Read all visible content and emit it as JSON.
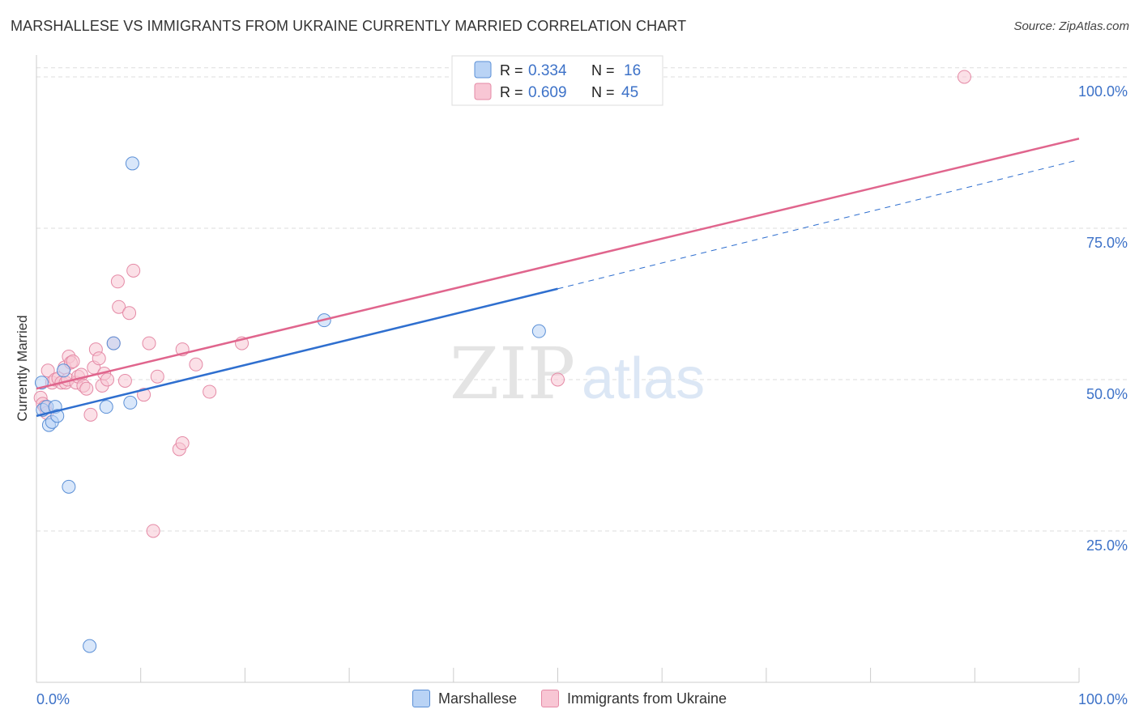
{
  "title": "MARSHALLESE VS IMMIGRANTS FROM UKRAINE CURRENTLY MARRIED CORRELATION CHART",
  "source": "Source: ZipAtlas.com",
  "watermark": {
    "zip": "ZIP",
    "atlas": "atlas"
  },
  "colors": {
    "blue_fill": "#b9d3f5",
    "blue_stroke": "#5a8fd6",
    "blue_line": "#2f6fcf",
    "pink_fill": "#f8c6d4",
    "pink_stroke": "#e58aa6",
    "pink_line": "#e0658d",
    "tick_label": "#3d72c8",
    "grid": "#dddddd"
  },
  "legend": {
    "r_label": "R =",
    "n_label": "N =",
    "series": [
      {
        "r": "0.334",
        "n": "16"
      },
      {
        "r": "0.609",
        "n": "45"
      }
    ]
  },
  "chart_data": {
    "type": "scatter",
    "title": "MARSHALLESE VS IMMIGRANTS FROM UKRAINE CURRENTLY MARRIED CORRELATION CHART",
    "xlabel": "",
    "ylabel": "Currently Married",
    "xlim": [
      0,
      100
    ],
    "ylim": [
      0,
      102
    ],
    "x_tick_labels": [
      "0.0%",
      "100.0%"
    ],
    "y_ticks": [
      25,
      50,
      75,
      100
    ],
    "y_tick_labels": [
      "25.0%",
      "50.0%",
      "75.0%",
      "100.0%"
    ],
    "legend_position": "top-center",
    "series": [
      {
        "name": "Marshallese",
        "r": 0.334,
        "n": 16,
        "points": [
          [
            0.5,
            49.5
          ],
          [
            0.6,
            45
          ],
          [
            1.0,
            45.5
          ],
          [
            1.2,
            42.5
          ],
          [
            1.5,
            43
          ],
          [
            1.8,
            45.5
          ],
          [
            2.0,
            44
          ],
          [
            2.6,
            51.5
          ],
          [
            3.1,
            32.3
          ],
          [
            5.1,
            6
          ],
          [
            6.7,
            45.5
          ],
          [
            7.4,
            56
          ],
          [
            9.0,
            46.2
          ],
          [
            9.2,
            85.7
          ],
          [
            27.6,
            59.8
          ],
          [
            48.2,
            58
          ]
        ],
        "trend": {
          "x0": 0,
          "y0": 44,
          "x1": 50,
          "y1": 65,
          "dash_x1": 100,
          "dash_y1": 86.3
        }
      },
      {
        "name": "Immigrants from Ukraine",
        "r": 0.609,
        "n": 45,
        "points": [
          [
            0.4,
            47
          ],
          [
            0.6,
            46
          ],
          [
            0.8,
            45.5
          ],
          [
            1.0,
            44.5
          ],
          [
            1.1,
            51.5
          ],
          [
            1.5,
            49.5
          ],
          [
            1.8,
            50
          ],
          [
            2.1,
            50.2
          ],
          [
            2.4,
            49.5
          ],
          [
            2.7,
            52
          ],
          [
            2.8,
            49.5
          ],
          [
            3.0,
            50
          ],
          [
            3.1,
            53.8
          ],
          [
            3.3,
            52.8
          ],
          [
            3.5,
            53
          ],
          [
            3.8,
            49.5
          ],
          [
            4.0,
            50.5
          ],
          [
            4.3,
            50.8
          ],
          [
            4.5,
            49
          ],
          [
            4.8,
            48.5
          ],
          [
            5.2,
            44.2
          ],
          [
            5.5,
            52
          ],
          [
            5.7,
            55
          ],
          [
            6.0,
            53.5
          ],
          [
            6.3,
            49
          ],
          [
            6.5,
            51
          ],
          [
            6.8,
            50
          ],
          [
            7.4,
            56
          ],
          [
            7.8,
            66.2
          ],
          [
            7.9,
            62
          ],
          [
            8.5,
            49.8
          ],
          [
            8.9,
            61
          ],
          [
            9.3,
            68
          ],
          [
            10.3,
            47.5
          ],
          [
            10.8,
            56
          ],
          [
            11.2,
            25
          ],
          [
            11.6,
            50.5
          ],
          [
            13.7,
            38.5
          ],
          [
            14.0,
            39.5
          ],
          [
            14.0,
            55
          ],
          [
            15.3,
            52.5
          ],
          [
            16.6,
            48
          ],
          [
            19.7,
            56
          ],
          [
            50.0,
            50
          ],
          [
            89.0,
            100
          ]
        ],
        "trend": {
          "x0": 0,
          "y0": 48.5,
          "x1": 100,
          "y1": 89.8
        }
      }
    ]
  }
}
